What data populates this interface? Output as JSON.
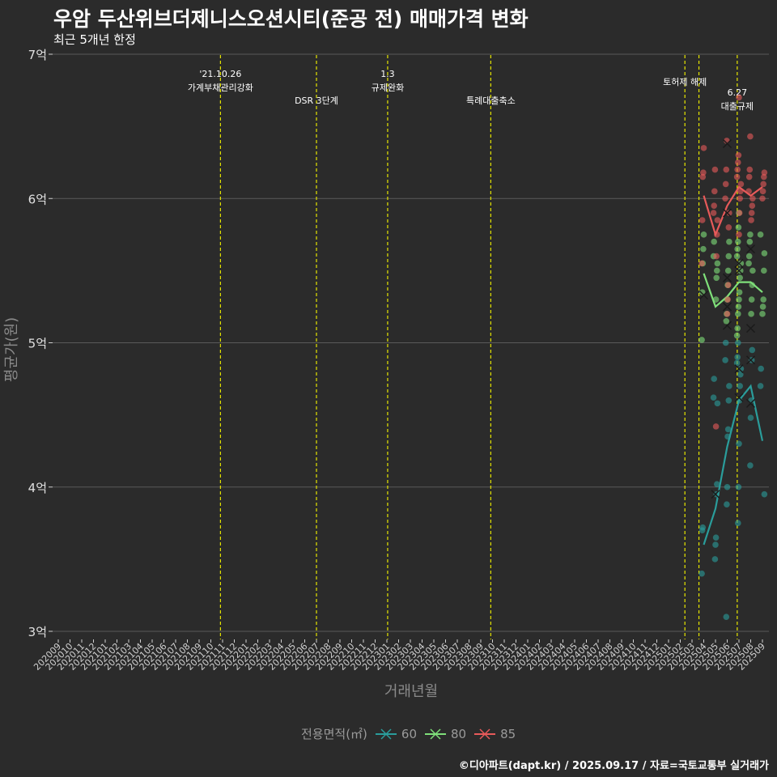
{
  "title": "우암 두산위브더제니스오션시티(준공 전) 매매가격 변화",
  "subtitle": "최근 5개년 한정",
  "caption": "©디아파트(dapt.kr) / 2025.09.17 / 자료=국토교통부 실거래가",
  "colors": {
    "background": "#2b2b2b",
    "grid": "#5a5a5a",
    "event_line": "#e6e600",
    "s60": "#2a9d9b",
    "s80": "#7fe07a",
    "s85": "#e85a5a"
  },
  "chart_data": {
    "type": "line",
    "xlabel": "거래년월",
    "ylabel": "평균가(원)",
    "y_ticks": [
      {
        "value": 3,
        "label": "3억"
      },
      {
        "value": 4,
        "label": "4억"
      },
      {
        "value": 5,
        "label": "5억"
      },
      {
        "value": 6,
        "label": "6억"
      },
      {
        "value": 7,
        "label": "7억"
      }
    ],
    "ylim": [
      3,
      7
    ],
    "x_start": "202009",
    "x_end": "202509",
    "x_labels": [
      "202009",
      "202010",
      "202011",
      "202012",
      "202101",
      "202102",
      "202103",
      "202104",
      "202105",
      "202106",
      "202107",
      "202108",
      "202109",
      "202110",
      "202111",
      "202112",
      "202201",
      "202202",
      "202203",
      "202204",
      "202205",
      "202206",
      "202207",
      "202208",
      "202209",
      "202210",
      "202211",
      "202212",
      "202301",
      "202302",
      "202303",
      "202304",
      "202305",
      "202306",
      "202307",
      "202308",
      "202309",
      "202310",
      "202311",
      "202312",
      "202401",
      "202402",
      "202403",
      "202404",
      "202405",
      "202406",
      "202407",
      "202408",
      "202409",
      "202410",
      "202411",
      "202412",
      "202501",
      "202502",
      "202503",
      "202504",
      "202505",
      "202506",
      "202507",
      "202508",
      "202509"
    ],
    "events": [
      {
        "x": "2021-10-26",
        "line1": "'21.10.26",
        "line2": "가계부채관리강화",
        "row": 0
      },
      {
        "x": "2022-07-01",
        "line1": "DSR 3단계",
        "line2": "",
        "row": 2
      },
      {
        "x": "2023-01-03",
        "line1": "1.3",
        "line2": "규제완화",
        "row": 0
      },
      {
        "x": "2023-09-27",
        "line1": "특례대출축소",
        "line2": "",
        "row": 2
      },
      {
        "x": "2025-02-13",
        "line1": "토허제 해제",
        "line2": "",
        "row": 1
      },
      {
        "x": "2025-03-19",
        "line1": "",
        "line2": "",
        "row": 0
      },
      {
        "x": "2025-06-27",
        "line1": "6.27",
        "line2": "대출규제",
        "row": 3
      }
    ],
    "legend_title": "전용면적(㎡)",
    "series": [
      {
        "name": "60",
        "color_key": "s60",
        "line": [
          [
            "202504",
            3.6
          ],
          [
            "202505",
            3.85
          ],
          [
            "202506",
            4.28
          ],
          [
            "202507",
            4.6
          ],
          [
            "202508",
            4.7
          ],
          [
            "202509",
            4.32
          ]
        ],
        "points": [
          [
            "202504",
            3.4
          ],
          [
            "202504",
            3.7
          ],
          [
            "202504",
            3.72
          ],
          [
            "202505",
            3.5
          ],
          [
            "202505",
            3.6
          ],
          [
            "202505",
            3.65
          ],
          [
            "202505",
            3.95
          ],
          [
            "202505",
            4.02
          ],
          [
            "202505",
            4.58
          ],
          [
            "202505",
            4.62
          ],
          [
            "202505",
            4.75
          ],
          [
            "202506",
            3.1
          ],
          [
            "202506",
            3.88
          ],
          [
            "202506",
            4.0
          ],
          [
            "202506",
            4.35
          ],
          [
            "202506",
            4.4
          ],
          [
            "202506",
            4.6
          ],
          [
            "202506",
            4.7
          ],
          [
            "202506",
            4.88
          ],
          [
            "202506",
            5.0
          ],
          [
            "202507",
            3.75
          ],
          [
            "202507",
            4.0
          ],
          [
            "202507",
            4.3
          ],
          [
            "202507",
            4.6
          ],
          [
            "202507",
            4.7
          ],
          [
            "202507",
            4.78
          ],
          [
            "202507",
            4.82
          ],
          [
            "202507",
            4.86
          ],
          [
            "202507",
            4.9
          ],
          [
            "202507",
            5.0
          ],
          [
            "202508",
            4.15
          ],
          [
            "202508",
            4.48
          ],
          [
            "202508",
            4.6
          ],
          [
            "202508",
            4.88
          ],
          [
            "202508",
            4.95
          ],
          [
            "202509",
            3.95
          ],
          [
            "202509",
            4.7
          ],
          [
            "202509",
            4.82
          ]
        ],
        "crosses": [
          [
            "202505",
            3.95
          ],
          [
            "202506",
            5.12
          ],
          [
            "202507",
            4.62
          ],
          [
            "202507",
            4.82
          ],
          [
            "202508",
            4.58
          ],
          [
            "202508",
            5.1
          ],
          [
            "202508",
            4.88
          ]
        ]
      },
      {
        "name": "80",
        "color_key": "s80",
        "line": [
          [
            "202504",
            5.48
          ],
          [
            "202505",
            5.25
          ],
          [
            "202506",
            5.32
          ],
          [
            "202507",
            5.42
          ],
          [
            "202508",
            5.42
          ],
          [
            "202509",
            5.35
          ]
        ],
        "points": [
          [
            "202504",
            5.02
          ],
          [
            "202504",
            5.35
          ],
          [
            "202504",
            5.55
          ],
          [
            "202504",
            5.65
          ],
          [
            "202504",
            5.75
          ],
          [
            "202505",
            5.3
          ],
          [
            "202505",
            5.45
          ],
          [
            "202505",
            5.5
          ],
          [
            "202505",
            5.55
          ],
          [
            "202505",
            5.6
          ],
          [
            "202505",
            5.7
          ],
          [
            "202506",
            5.15
          ],
          [
            "202506",
            5.2
          ],
          [
            "202506",
            5.3
          ],
          [
            "202506",
            5.4
          ],
          [
            "202506",
            5.5
          ],
          [
            "202506",
            5.6
          ],
          [
            "202506",
            5.7
          ],
          [
            "202507",
            5.05
          ],
          [
            "202507",
            5.1
          ],
          [
            "202507",
            5.2
          ],
          [
            "202507",
            5.25
          ],
          [
            "202507",
            5.3
          ],
          [
            "202507",
            5.35
          ],
          [
            "202507",
            5.45
          ],
          [
            "202507",
            5.5
          ],
          [
            "202507",
            5.55
          ],
          [
            "202507",
            5.6
          ],
          [
            "202507",
            5.65
          ],
          [
            "202507",
            5.7
          ],
          [
            "202507",
            5.8
          ],
          [
            "202507",
            5.9
          ],
          [
            "202508",
            5.2
          ],
          [
            "202508",
            5.3
          ],
          [
            "202508",
            5.4
          ],
          [
            "202508",
            5.5
          ],
          [
            "202508",
            5.55
          ],
          [
            "202508",
            5.6
          ],
          [
            "202508",
            5.7
          ],
          [
            "202508",
            5.75
          ],
          [
            "202509",
            5.2
          ],
          [
            "202509",
            5.25
          ],
          [
            "202509",
            5.3
          ],
          [
            "202509",
            5.5
          ],
          [
            "202509",
            5.62
          ],
          [
            "202509",
            5.75
          ]
        ],
        "crosses": [
          [
            "202504",
            5.33
          ],
          [
            "202506",
            5.45
          ],
          [
            "202506",
            5.25
          ],
          [
            "202507",
            5.5
          ],
          [
            "202507",
            5.55
          ],
          [
            "202508",
            5.65
          ]
        ]
      },
      {
        "name": "85",
        "color_key": "s85",
        "line": [
          [
            "202504",
            6.02
          ],
          [
            "202505",
            5.75
          ],
          [
            "202506",
            5.95
          ],
          [
            "202507",
            6.08
          ],
          [
            "202508",
            6.02
          ],
          [
            "202509",
            6.08
          ]
        ],
        "points": [
          [
            "202504",
            5.55
          ],
          [
            "202504",
            5.85
          ],
          [
            "202504",
            6.15
          ],
          [
            "202504",
            6.18
          ],
          [
            "202504",
            6.35
          ],
          [
            "202505",
            4.42
          ],
          [
            "202505",
            5.6
          ],
          [
            "202505",
            5.75
          ],
          [
            "202505",
            5.85
          ],
          [
            "202505",
            5.9
          ],
          [
            "202505",
            5.95
          ],
          [
            "202505",
            6.05
          ],
          [
            "202505",
            6.2
          ],
          [
            "202506",
            5.2
          ],
          [
            "202506",
            5.3
          ],
          [
            "202506",
            5.4
          ],
          [
            "202506",
            5.8
          ],
          [
            "202506",
            5.9
          ],
          [
            "202506",
            6.0
          ],
          [
            "202506",
            6.1
          ],
          [
            "202506",
            6.2
          ],
          [
            "202506",
            6.4
          ],
          [
            "202507",
            5.75
          ],
          [
            "202507",
            5.9
          ],
          [
            "202507",
            6.0
          ],
          [
            "202507",
            6.05
          ],
          [
            "202507",
            6.1
          ],
          [
            "202507",
            6.15
          ],
          [
            "202507",
            6.2
          ],
          [
            "202507",
            6.25
          ],
          [
            "202507",
            6.3
          ],
          [
            "202507",
            6.7
          ],
          [
            "202508",
            5.85
          ],
          [
            "202508",
            5.9
          ],
          [
            "202508",
            5.95
          ],
          [
            "202508",
            6.0
          ],
          [
            "202508",
            6.05
          ],
          [
            "202508",
            6.15
          ],
          [
            "202508",
            6.2
          ],
          [
            "202508",
            6.43
          ],
          [
            "202509",
            6.0
          ],
          [
            "202509",
            6.05
          ],
          [
            "202509",
            6.1
          ],
          [
            "202509",
            6.15
          ],
          [
            "202509",
            6.18
          ]
        ],
        "crosses": [
          [
            "202506",
            6.38
          ],
          [
            "202506",
            5.9
          ],
          [
            "202506",
            5.45
          ],
          [
            "202506",
            5.25
          ]
        ]
      }
    ]
  }
}
